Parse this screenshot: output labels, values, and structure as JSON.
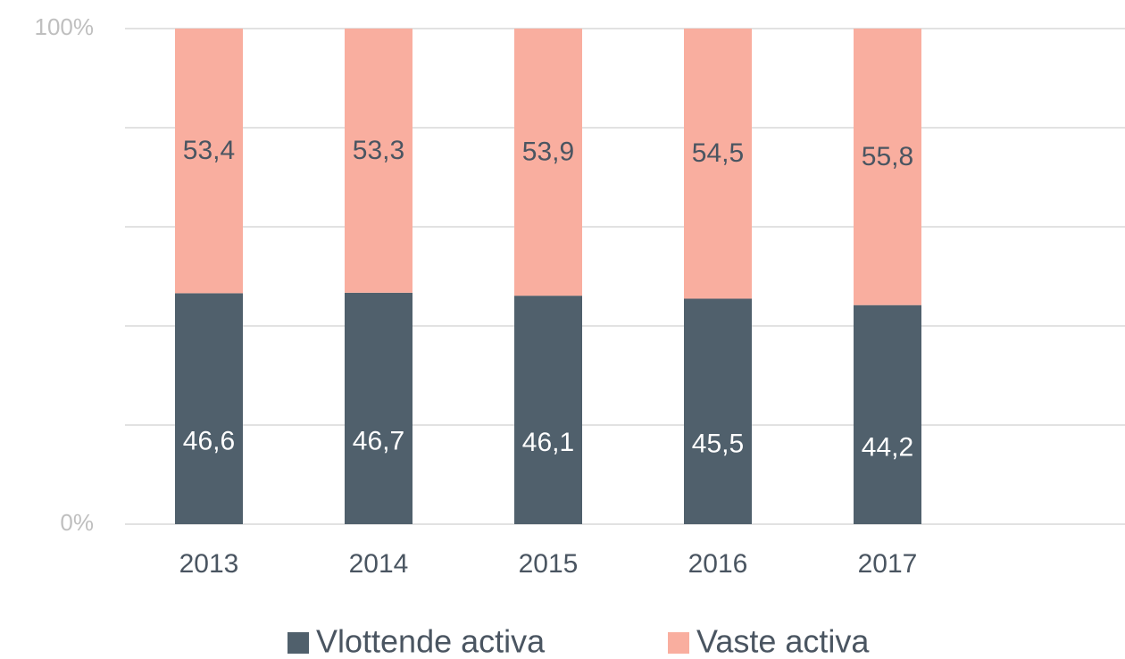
{
  "chart_data": {
    "type": "stacked_bar",
    "categories": [
      "2013",
      "2014",
      "2015",
      "2016",
      "2017"
    ],
    "series": [
      {
        "name": "Vlottende activa",
        "color": "#50606c",
        "values": [
          46.6,
          46.7,
          46.1,
          45.5,
          44.2
        ],
        "value_labels": [
          "46,6",
          "46,7",
          "46,1",
          "45,5",
          "44,2"
        ]
      },
      {
        "name": "Vaste activa",
        "color": "#f9ae9f",
        "values": [
          53.4,
          53.3,
          53.9,
          54.5,
          55.8
        ],
        "value_labels": [
          "53,4",
          "53,3",
          "53,9",
          "54,5",
          "55,8"
        ]
      }
    ],
    "ylim": [
      0,
      100
    ],
    "yticks": [
      {
        "value": 0,
        "label": "0%"
      },
      {
        "value": 20,
        "label": null
      },
      {
        "value": 40,
        "label": null
      },
      {
        "value": 60,
        "label": null
      },
      {
        "value": 80,
        "label": null
      },
      {
        "value": 100,
        "label": "100%"
      }
    ],
    "grid": true,
    "legend": "bottom"
  }
}
